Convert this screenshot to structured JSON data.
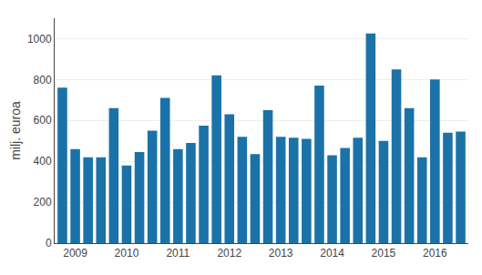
{
  "chart_data": {
    "type": "bar",
    "ylabel": "milj. euroa",
    "categories": [
      null,
      "2009",
      null,
      null,
      null,
      "2010",
      null,
      null,
      null,
      "2011",
      null,
      null,
      null,
      "2012",
      null,
      null,
      null,
      "2013",
      null,
      null,
      null,
      "2014",
      null,
      null,
      null,
      "2015",
      null,
      null,
      null,
      "2016",
      null,
      null
    ],
    "values": [
      760,
      460,
      420,
      420,
      660,
      380,
      445,
      550,
      710,
      460,
      490,
      575,
      820,
      630,
      520,
      435,
      650,
      520,
      515,
      510,
      770,
      430,
      465,
      515,
      1025,
      500,
      850,
      660,
      420,
      800,
      540,
      545
    ],
    "color": "#1a72a8",
    "ylim": [
      0,
      1100
    ],
    "yticks": [
      0,
      200,
      400,
      600,
      800,
      1000
    ],
    "grid": true
  }
}
